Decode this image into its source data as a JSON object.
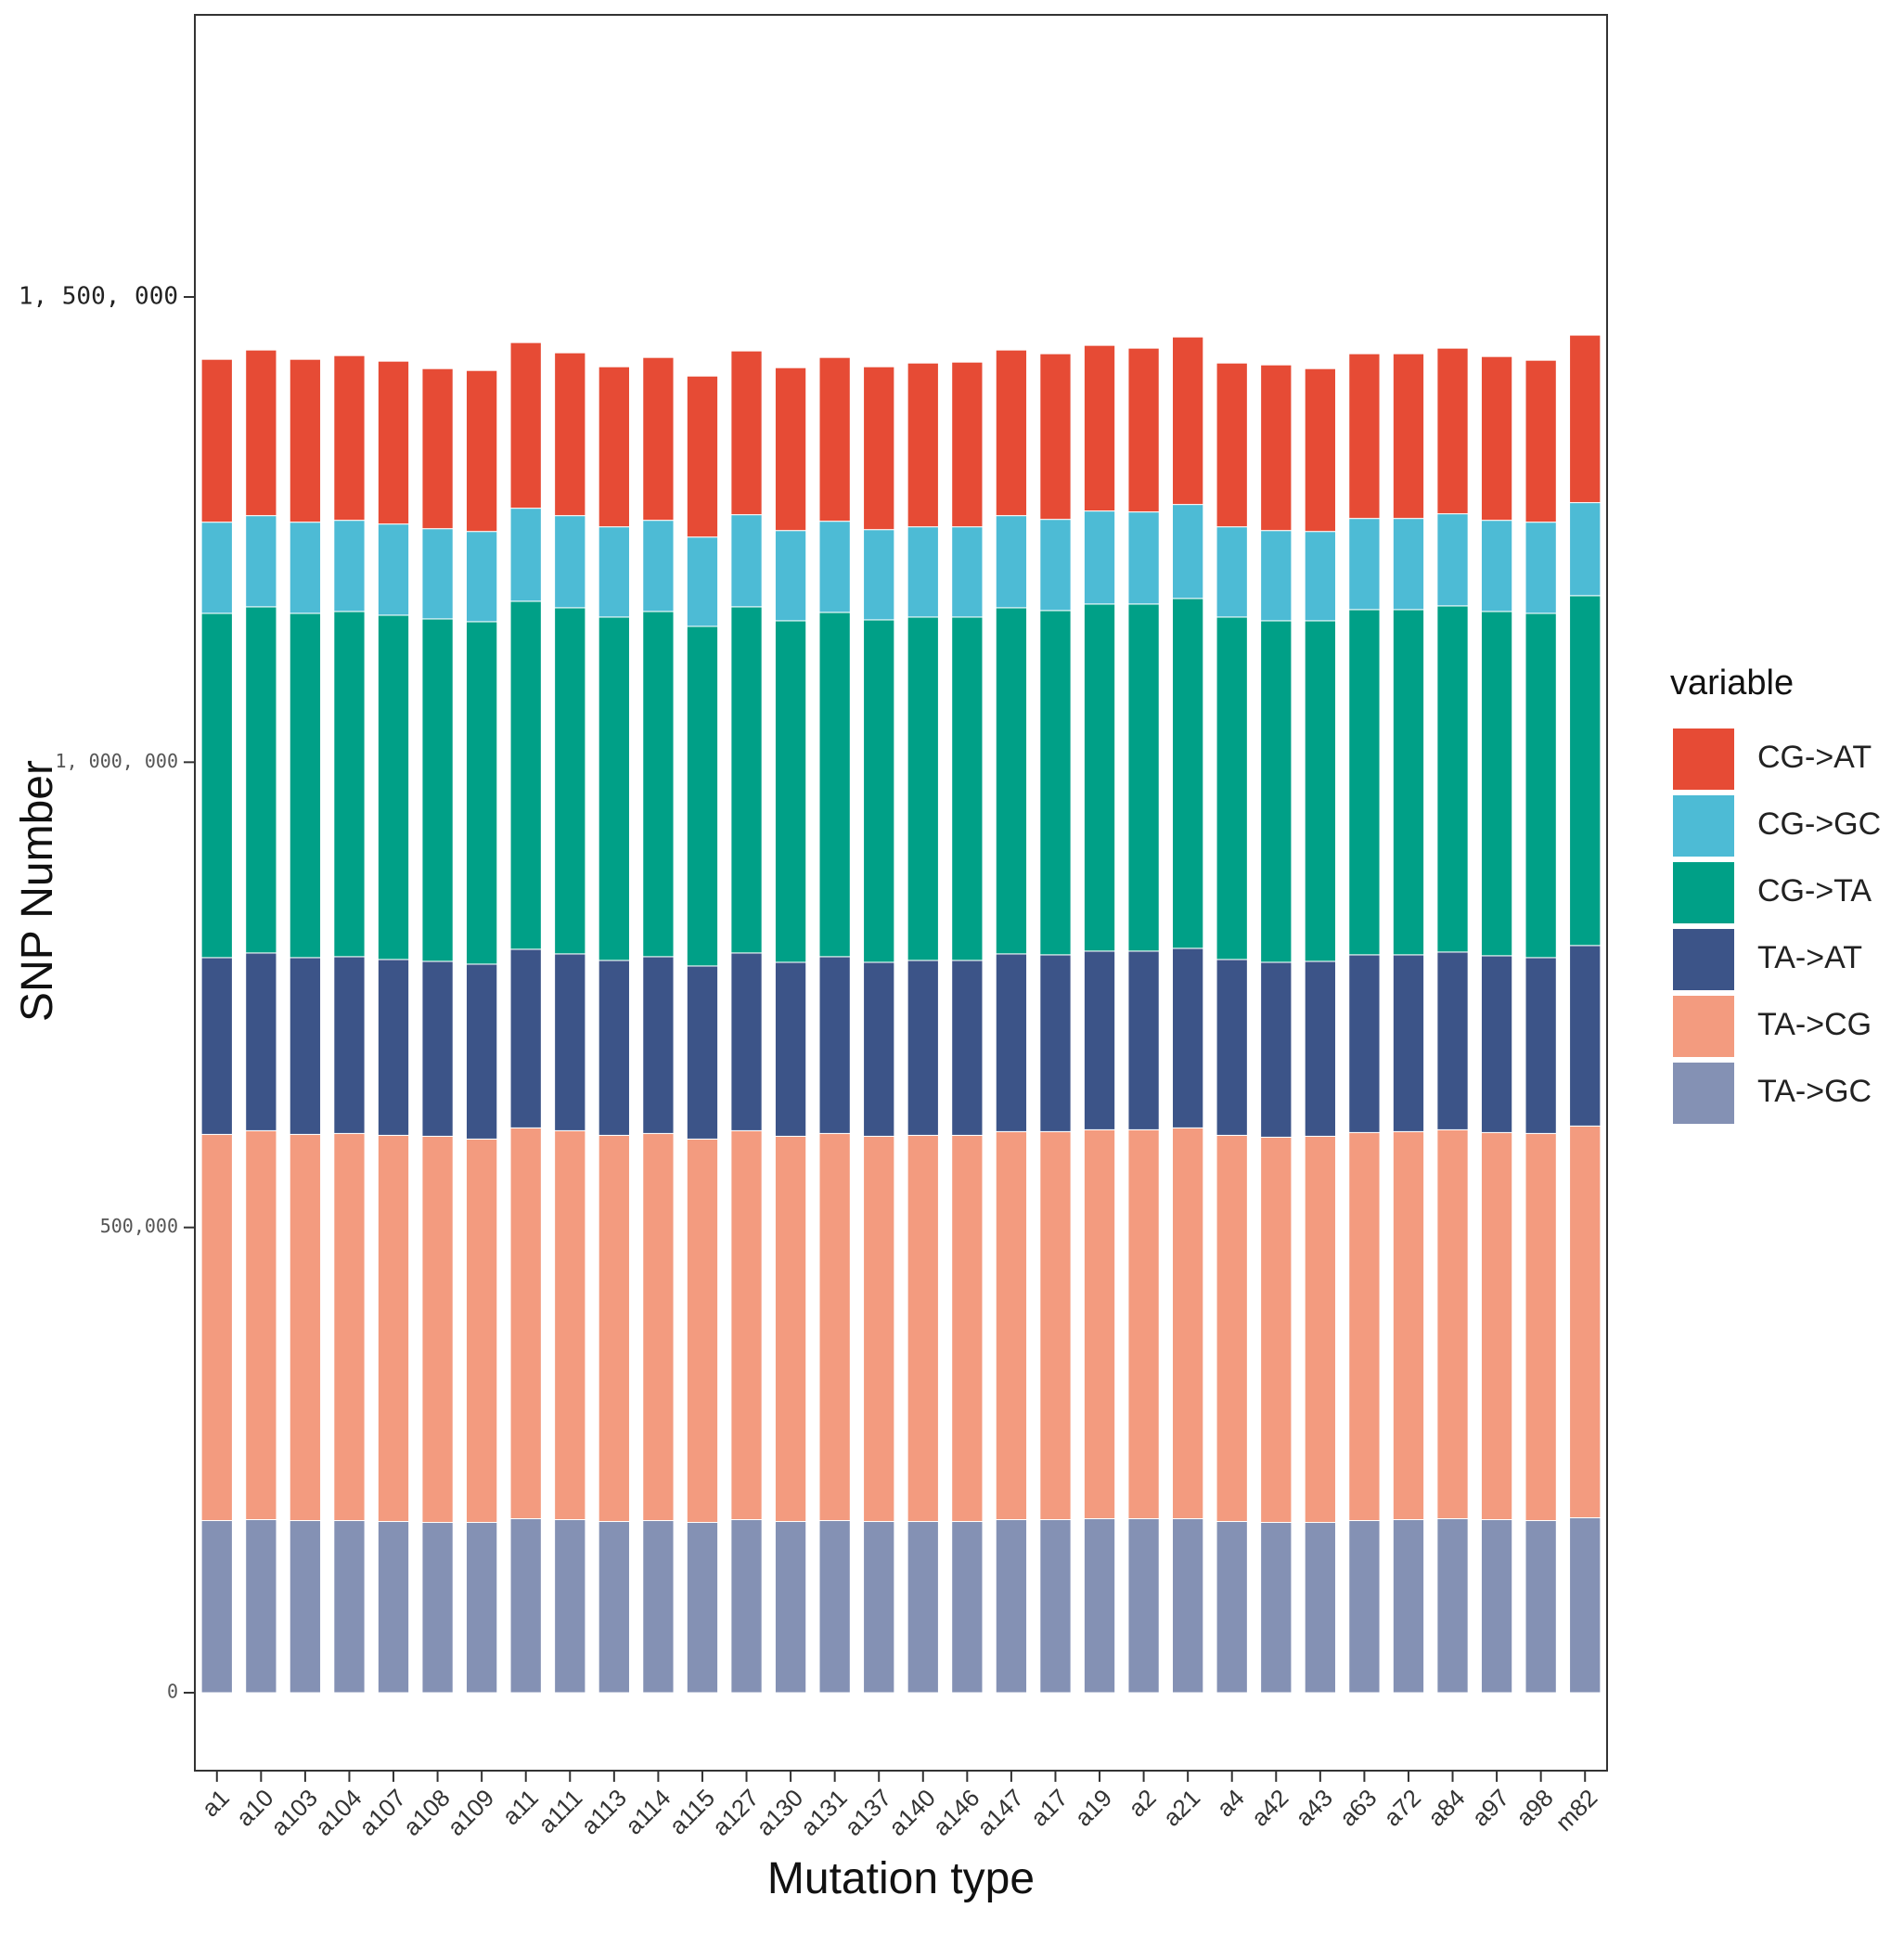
{
  "chart_data": {
    "type": "bar",
    "stacked": true,
    "xlabel": "Mutation type",
    "ylabel": "SNP Number",
    "ylim": [
      -80000,
      1810000
    ],
    "yticks": [
      0,
      500000,
      1000000,
      1500000
    ],
    "ytick_labels": [
      "0",
      "500,000",
      "1, 000, 000",
      "1, 500, 000"
    ],
    "grid": false,
    "legend": {
      "title": "variable",
      "position": "right"
    },
    "categories": [
      "a1",
      "a10",
      "a103",
      "a104",
      "a107",
      "a108",
      "a109",
      "a11",
      "a111",
      "a113",
      "a114",
      "a115",
      "a127",
      "a130",
      "a131",
      "a137",
      "a140",
      "a146",
      "a147",
      "a17",
      "a19",
      "a2",
      "a21",
      "a4",
      "a42",
      "a43",
      "a63",
      "a72",
      "a84",
      "a97",
      "a98",
      "m82"
    ],
    "series": [
      {
        "name": "TA->GC",
        "color": "#8491B4",
        "values": [
          185000,
          186000,
          185000,
          185000,
          184000,
          183000,
          183000,
          187000,
          186000,
          184000,
          185000,
          183000,
          186000,
          184000,
          185000,
          184000,
          184000,
          184000,
          186000,
          186000,
          187000,
          187000,
          187000,
          184000,
          183000,
          183000,
          185000,
          186000,
          187000,
          186000,
          185000,
          188000
        ]
      },
      {
        "name": "TA->CG",
        "color": "#F39B7F",
        "values": [
          415000,
          418000,
          415000,
          416000,
          415000,
          415000,
          412000,
          420000,
          418000,
          415000,
          416000,
          412000,
          418000,
          414000,
          416000,
          414000,
          415000,
          415000,
          417000,
          417000,
          418000,
          418000,
          420000,
          415000,
          414000,
          415000,
          417000,
          417000,
          418000,
          416000,
          416000,
          421000
        ]
      },
      {
        "name": "TA->AT",
        "color": "#3C5488",
        "values": [
          190000,
          191000,
          190000,
          190000,
          189000,
          188000,
          188000,
          192000,
          190000,
          188000,
          190000,
          186000,
          191000,
          187000,
          190000,
          187000,
          188000,
          188000,
          191000,
          190000,
          192000,
          192000,
          193000,
          189000,
          188000,
          188000,
          191000,
          190000,
          191000,
          190000,
          189000,
          194000
        ]
      },
      {
        "name": "CG->TA",
        "color": "#00A087",
        "values": [
          370000,
          372000,
          370000,
          371000,
          370000,
          368000,
          368000,
          374000,
          372000,
          369000,
          371000,
          365000,
          372000,
          367000,
          370000,
          368000,
          369000,
          369000,
          372000,
          370000,
          373000,
          373000,
          376000,
          368000,
          367000,
          366000,
          371000,
          371000,
          372000,
          370000,
          370000,
          376000
        ]
      },
      {
        "name": "CG->GC",
        "color": "#4DBBD5",
        "values": [
          98000,
          98000,
          98000,
          98000,
          98000,
          97000,
          97000,
          100000,
          99000,
          97000,
          98000,
          96000,
          99000,
          97000,
          98000,
          97000,
          97000,
          97000,
          99000,
          98000,
          100000,
          99000,
          101000,
          97000,
          97000,
          96000,
          98000,
          98000,
          99000,
          98000,
          98000,
          100000
        ]
      },
      {
        "name": "CG->AT",
        "color": "#E64B35",
        "values": [
          175000,
          178000,
          175000,
          177000,
          175000,
          172000,
          173000,
          178000,
          175000,
          172000,
          175000,
          173000,
          176000,
          175000,
          176000,
          175000,
          176000,
          177000,
          178000,
          178000,
          178000,
          176000,
          180000,
          176000,
          178000,
          175000,
          177000,
          177000,
          178000,
          176000,
          174000,
          180000
        ]
      }
    ],
    "legend_order": [
      "CG->AT",
      "CG->GC",
      "CG->TA",
      "TA->AT",
      "TA->CG",
      "TA->GC"
    ]
  }
}
